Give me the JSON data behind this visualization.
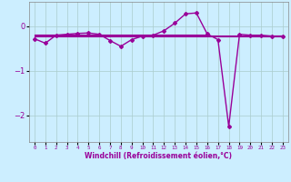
{
  "xlabel": "Windchill (Refroidissement éolien,°C)",
  "x": [
    0,
    1,
    2,
    3,
    4,
    5,
    6,
    7,
    8,
    9,
    10,
    11,
    12,
    13,
    14,
    15,
    16,
    17,
    18,
    19,
    20,
    21,
    22,
    23
  ],
  "y_main": [
    -0.28,
    -0.38,
    -0.2,
    -0.18,
    -0.16,
    -0.15,
    -0.18,
    -0.32,
    -0.45,
    -0.3,
    -0.22,
    -0.2,
    -0.1,
    0.07,
    0.28,
    0.3,
    -0.17,
    -0.3,
    -2.25,
    -0.18,
    -0.2,
    -0.2,
    -0.22,
    -0.22
  ],
  "y_line1_x": [
    0,
    16
  ],
  "y_line1_y": [
    -0.18,
    -0.18
  ],
  "y_line2_x": [
    0,
    16
  ],
  "y_line2_y": [
    -0.2,
    -0.2
  ],
  "y_line3_x": [
    0,
    23
  ],
  "y_line3_y": [
    -0.22,
    -0.22
  ],
  "y_line4_x": [
    16,
    23
  ],
  "y_line4_y": [
    -0.2,
    -0.2
  ],
  "line_color": "#990099",
  "bg_color": "#cceeff",
  "grid_color": "#aacccc",
  "ylim": [
    -2.6,
    0.55
  ],
  "yticks": [
    0,
    -1,
    -2
  ],
  "xlim": [
    -0.5,
    23.5
  ]
}
